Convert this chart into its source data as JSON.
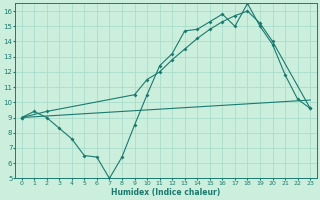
{
  "xlabel": "Humidex (Indice chaleur)",
  "xlim": [
    -0.5,
    23.5
  ],
  "ylim": [
    5,
    16.5
  ],
  "xticks": [
    0,
    1,
    2,
    3,
    4,
    5,
    6,
    7,
    8,
    9,
    10,
    11,
    12,
    13,
    14,
    15,
    16,
    17,
    18,
    19,
    20,
    21,
    22,
    23
  ],
  "yticks": [
    5,
    6,
    7,
    8,
    9,
    10,
    11,
    12,
    13,
    14,
    15,
    16
  ],
  "bg_color": "#cceedd",
  "grid_color": "#aaddcc",
  "line_color": "#1a7a6e",
  "line1_x": [
    0,
    1,
    2,
    3,
    4,
    5,
    6,
    7,
    8,
    9,
    10,
    11,
    12,
    13,
    14,
    15,
    16,
    17,
    18,
    19,
    20,
    21,
    22,
    23
  ],
  "line1_y": [
    9.0,
    9.4,
    9.0,
    8.3,
    7.6,
    6.5,
    6.4,
    5.0,
    6.4,
    8.5,
    10.5,
    12.4,
    13.2,
    14.7,
    14.8,
    15.3,
    15.8,
    15.0,
    16.5,
    15.0,
    13.8,
    11.8,
    10.2,
    9.6
  ],
  "line2_x": [
    0,
    1,
    2,
    3,
    4,
    5,
    6,
    7,
    8,
    9,
    10,
    11,
    12,
    13,
    14,
    15,
    16,
    17,
    18,
    19,
    20,
    21,
    22,
    23
  ],
  "line2_y": [
    9.0,
    9.05,
    9.1,
    9.15,
    9.2,
    9.25,
    9.3,
    9.35,
    9.4,
    9.45,
    9.5,
    9.55,
    9.6,
    9.65,
    9.7,
    9.75,
    9.8,
    9.85,
    9.9,
    9.95,
    10.0,
    10.05,
    10.1,
    10.15
  ],
  "line3_x": [
    0,
    2,
    9,
    10,
    11,
    12,
    13,
    14,
    15,
    16,
    17,
    18,
    19,
    20,
    23
  ],
  "line3_y": [
    9.0,
    9.4,
    10.5,
    11.5,
    12.0,
    12.8,
    13.5,
    14.2,
    14.8,
    15.3,
    15.7,
    16.0,
    15.2,
    14.0,
    9.6
  ]
}
